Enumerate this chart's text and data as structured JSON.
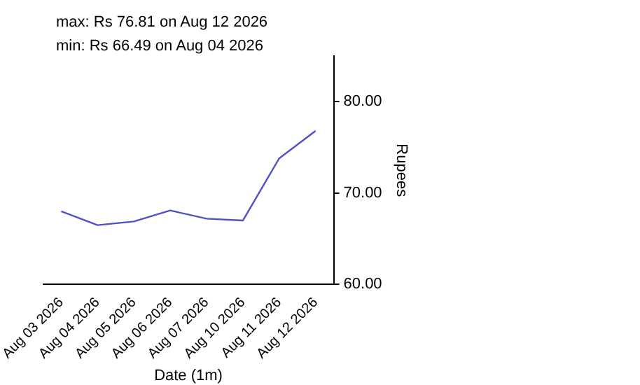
{
  "chart_data": {
    "type": "line",
    "categories": [
      "Aug 03 2026",
      "Aug 04 2026",
      "Aug 05 2026",
      "Aug 06 2026",
      "Aug 07 2026",
      "Aug 10 2026",
      "Aug 11 2026",
      "Aug 12 2026"
    ],
    "series": [
      {
        "color": "#5050c8",
        "values": [
          68.0,
          66.49,
          66.9,
          68.1,
          67.2,
          67.0,
          73.8,
          76.81
        ]
      }
    ],
    "ylim": [
      60,
      85
    ],
    "yticks": [
      {
        "value": 60,
        "label": "60.00"
      },
      {
        "value": 70,
        "label": "70.00"
      },
      {
        "value": 80,
        "label": "80.00"
      }
    ],
    "xlabel": "Date (1m)",
    "ylabel": "Rupees",
    "annotations": [
      "max: Rs 76.81 on Aug 12 2026",
      "min: Rs 66.49 on Aug 04 2026"
    ],
    "grid": false,
    "legend": false,
    "marker": "none",
    "line_style": "solid"
  }
}
